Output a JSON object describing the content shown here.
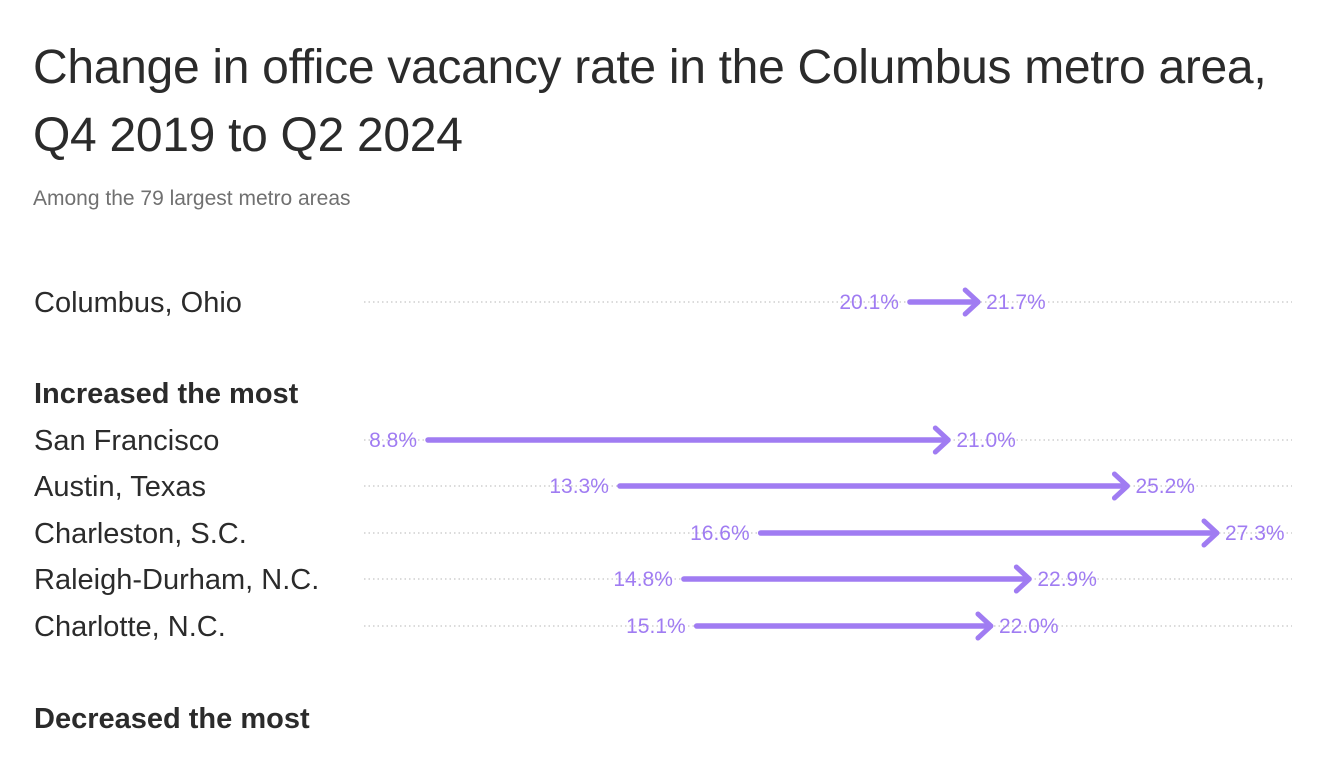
{
  "chart_data": {
    "type": "arrow-range",
    "title": "Change in office vacancy rate in the Columbus metro area, Q4 2019 to Q2 2024",
    "subtitle": "Among the 79 largest metro areas",
    "unit": "%",
    "xlim": [
      8.8,
      27.3
    ],
    "arrow_color": "#a07cf2",
    "label_color": "#a07cf2",
    "groups": [
      {
        "name": "",
        "rows": [
          {
            "label": "Columbus, Ohio",
            "start": 20.1,
            "end": 21.7,
            "start_label": "20.1%",
            "end_label": "21.7%"
          }
        ]
      },
      {
        "name": "Increased the most",
        "rows": [
          {
            "label": "San Francisco",
            "start": 8.8,
            "end": 21.0,
            "start_label": "8.8%",
            "end_label": "21.0%"
          },
          {
            "label": "Austin, Texas",
            "start": 13.3,
            "end": 25.2,
            "start_label": "13.3%",
            "end_label": "25.2%"
          },
          {
            "label": "Charleston, S.C.",
            "start": 16.6,
            "end": 27.3,
            "start_label": "16.6%",
            "end_label": "27.3%"
          },
          {
            "label": "Raleigh-Durham, N.C.",
            "start": 14.8,
            "end": 22.9,
            "start_label": "14.8%",
            "end_label": "22.9%"
          },
          {
            "label": "Charlotte, N.C.",
            "start": 15.1,
            "end": 22.0,
            "start_label": "15.1%",
            "end_label": "22.0%"
          }
        ]
      },
      {
        "name": "Decreased the most",
        "rows": []
      }
    ]
  }
}
